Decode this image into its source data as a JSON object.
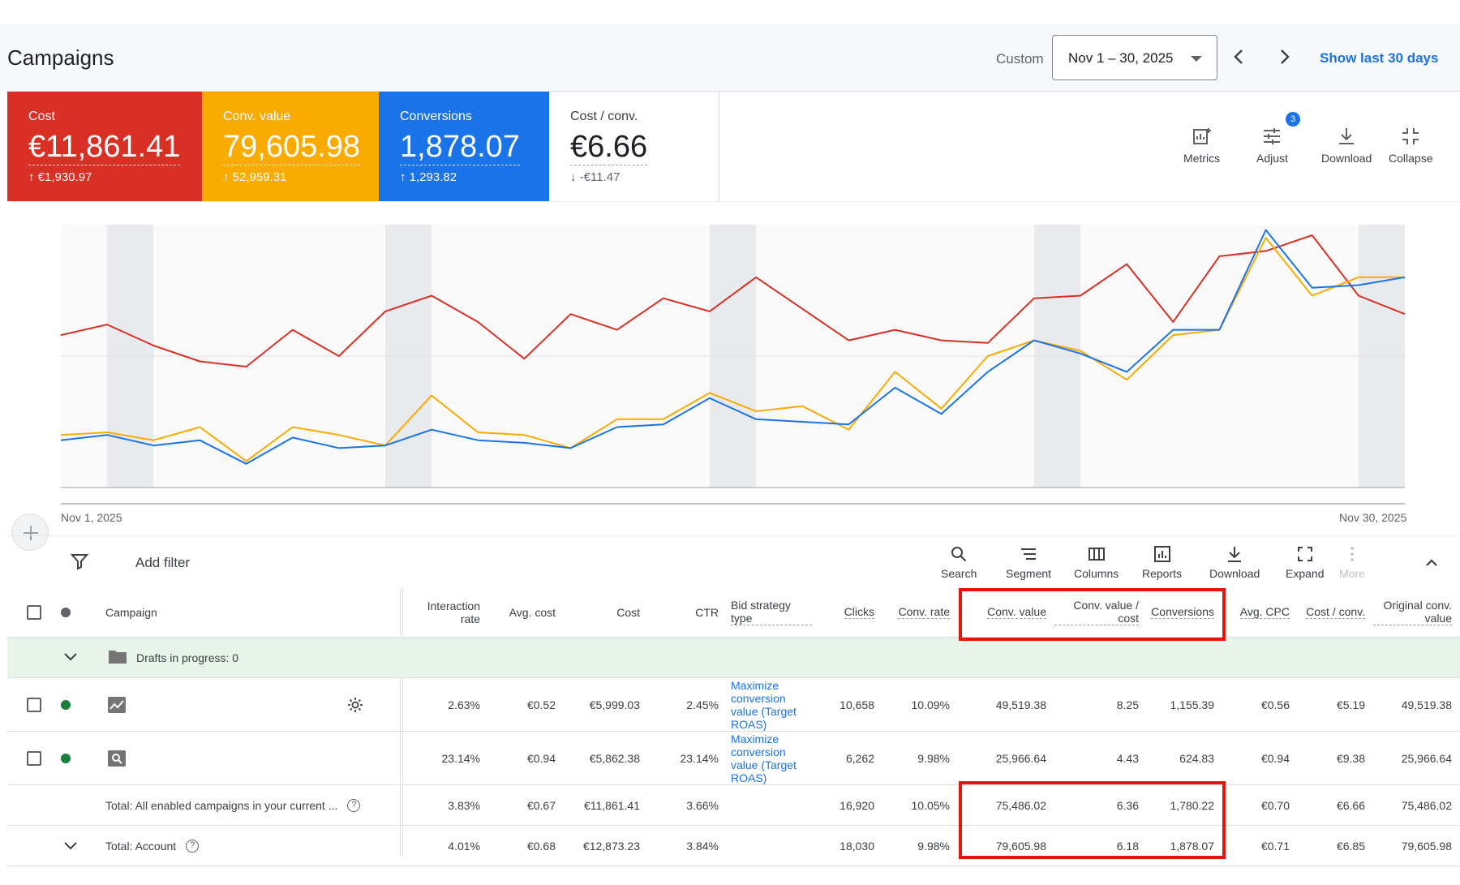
{
  "header": {
    "title": "Campaigns",
    "range_type": "Custom",
    "date_range": "Nov 1 – 30, 2025",
    "show_last": "Show last 30 days"
  },
  "scorecards": [
    {
      "label": "Cost",
      "value": "€11,861.41",
      "delta": "↑ €1,930.97",
      "color": "#d93025"
    },
    {
      "label": "Conv. value",
      "value": "79,605.98",
      "delta": "↑ 52,959.31",
      "color": "#f9ab00"
    },
    {
      "label": "Conversions",
      "value": "1,878.07",
      "delta": "↑ 1,293.82",
      "color": "#1a73e8"
    },
    {
      "label": "Cost / conv.",
      "value": "€6.66",
      "delta": "↓ -€11.47",
      "color": "#ffffff"
    }
  ],
  "card_tools": {
    "metrics": "Metrics",
    "adjust": "Adjust",
    "adjust_badge": "3",
    "download": "Download",
    "collapse": "Collapse"
  },
  "chart_data": {
    "type": "line",
    "x_start_label": "Nov 1, 2025",
    "x_end_label": "Nov 30, 2025",
    "x": [
      1,
      2,
      3,
      4,
      5,
      6,
      7,
      8,
      9,
      10,
      11,
      12,
      13,
      14,
      15,
      16,
      17,
      18,
      19,
      20,
      21,
      22,
      23,
      24,
      25,
      26,
      27,
      28,
      29,
      30
    ],
    "weekend_bands_start_days": [
      2,
      8,
      15,
      22,
      29
    ],
    "grid": true,
    "series": [
      {
        "color": "#d93025",
        "values": [
          0.58,
          0.62,
          0.54,
          0.48,
          0.46,
          0.6,
          0.5,
          0.67,
          0.73,
          0.63,
          0.49,
          0.66,
          0.6,
          0.72,
          0.67,
          0.8,
          0.68,
          0.56,
          0.6,
          0.56,
          0.55,
          0.72,
          0.73,
          0.85,
          0.63,
          0.88,
          0.9,
          0.96,
          0.73,
          0.66
        ]
      },
      {
        "color": "#f9ab00",
        "values": [
          0.2,
          0.21,
          0.18,
          0.23,
          0.1,
          0.23,
          0.2,
          0.16,
          0.35,
          0.21,
          0.2,
          0.15,
          0.26,
          0.26,
          0.36,
          0.29,
          0.31,
          0.22,
          0.44,
          0.3,
          0.5,
          0.56,
          0.52,
          0.41,
          0.58,
          0.6,
          0.95,
          0.73,
          0.8,
          0.8
        ]
      },
      {
        "color": "#1a73e8",
        "values": [
          0.18,
          0.2,
          0.16,
          0.18,
          0.09,
          0.19,
          0.15,
          0.16,
          0.22,
          0.18,
          0.17,
          0.15,
          0.23,
          0.24,
          0.34,
          0.26,
          0.25,
          0.24,
          0.38,
          0.28,
          0.44,
          0.56,
          0.51,
          0.44,
          0.6,
          0.6,
          0.98,
          0.76,
          0.77,
          0.8
        ]
      }
    ]
  },
  "toolbar": {
    "add_filter": "Add filter",
    "search": "Search",
    "segment": "Segment",
    "columns": "Columns",
    "reports": "Reports",
    "download": "Download",
    "expand": "Expand",
    "more": "More"
  },
  "table": {
    "headers": {
      "campaign": "Campaign",
      "interaction_rate": "Interaction rate",
      "avg_cost": "Avg. cost",
      "cost": "Cost",
      "ctr": "CTR",
      "bid_strategy": "Bid strategy type",
      "clicks": "Clicks",
      "conv_rate": "Conv. rate",
      "conv_value": "Conv. value",
      "conv_value_cost": "Conv. value / cost",
      "conversions": "Conversions",
      "avg_cpc": "Avg. CPC",
      "cost_conv": "Cost / conv.",
      "orig_conv_value": "Original conv. value"
    },
    "drafts": "Drafts in progress: 0",
    "rows": [
      {
        "interaction_rate": "2.63%",
        "avg_cost": "€0.52",
        "cost": "€5,999.03",
        "ctr": "2.45%",
        "bid": "Maximize conversion value (Target ROAS)",
        "clicks": "10,658",
        "conv_rate": "10.09%",
        "conv_value": "49,519.38",
        "conv_value_cost": "8.25",
        "conversions": "1,155.39",
        "avg_cpc": "€0.56",
        "cost_conv": "€5.19",
        "orig": "49,519.38"
      },
      {
        "interaction_rate": "23.14%",
        "avg_cost": "€0.94",
        "cost": "€5,862.38",
        "ctr": "23.14%",
        "bid": "Maximize conversion value (Target ROAS)",
        "clicks": "6,262",
        "conv_rate": "9.98%",
        "conv_value": "25,966.64",
        "conv_value_cost": "4.43",
        "conversions": "624.83",
        "avg_cpc": "€0.94",
        "cost_conv": "€9.38",
        "orig": "25,966.64"
      }
    ],
    "totals": [
      {
        "label": "Total: All enabled campaigns in your current ...",
        "interaction_rate": "3.83%",
        "avg_cost": "€0.67",
        "cost": "€11,861.41",
        "ctr": "3.66%",
        "clicks": "16,920",
        "conv_rate": "10.05%",
        "conv_value": "75,486.02",
        "conv_value_cost": "6.36",
        "conversions": "1,780.22",
        "avg_cpc": "€0.70",
        "cost_conv": "€6.66",
        "orig": "75,486.02"
      },
      {
        "label": "Total: Account",
        "interaction_rate": "4.01%",
        "avg_cost": "€0.68",
        "cost": "€12,873.23",
        "ctr": "3.84%",
        "clicks": "18,030",
        "conv_rate": "9.98%",
        "conv_value": "79,605.98",
        "conv_value_cost": "6.18",
        "conversions": "1,878.07",
        "avg_cpc": "€0.71",
        "cost_conv": "€6.85",
        "orig": "79,605.98"
      }
    ]
  }
}
